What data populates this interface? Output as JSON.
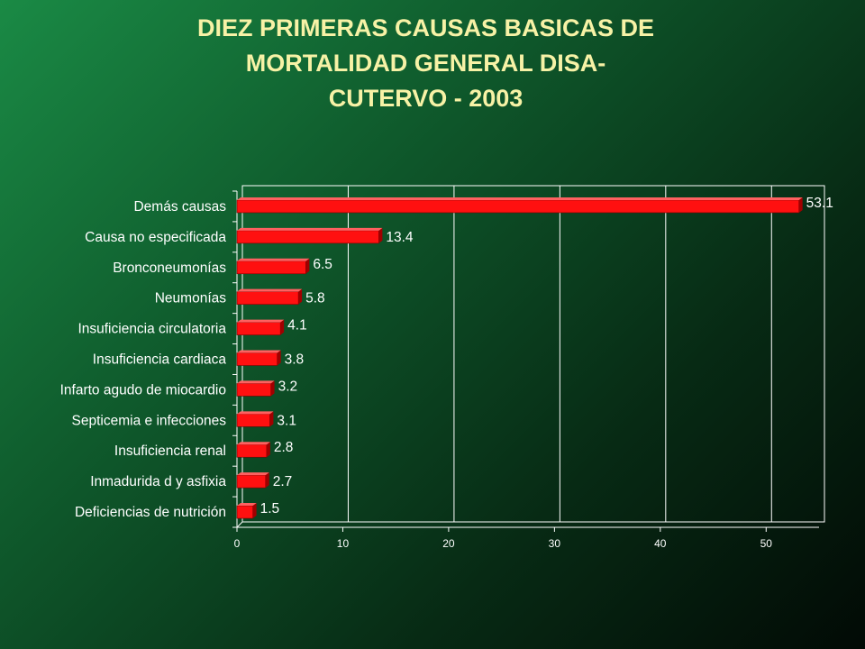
{
  "title": {
    "line1": "DIEZ PRIMERAS CAUSAS BASICAS DE",
    "line2": "MORTALIDAD GENERAL DISA-",
    "line3": "CUTERVO - 2003"
  },
  "colors": {
    "bar": "#ff1010",
    "bar_side": "#a00000",
    "title": "#f7f2a6",
    "text": "#ffffff",
    "grid": "#ffffff"
  },
  "chart_data": {
    "type": "bar",
    "orientation": "horizontal",
    "categories": [
      "Demás causas",
      "Causa no especificada",
      "Bronconeumonías",
      "Neumonías",
      "Insuficiencia circulatoria",
      "Insuficiencia cardiaca",
      "Infarto agudo de miocardio",
      "Septicemia e infecciones",
      "Insuficiencia renal",
      "Inmadurida d y asfixia",
      "Deficiencias de nutrición"
    ],
    "values": [
      53.1,
      13.4,
      6.5,
      5.8,
      4.1,
      3.8,
      3.2,
      3.1,
      2.8,
      2.7,
      1.5
    ],
    "value_labels": [
      "53.1",
      "13.4",
      "6.5",
      "5.8",
      "4.1",
      "3.8",
      "3.2",
      "3.1",
      "2.8",
      "2.7",
      "1.5"
    ],
    "xlim": [
      0,
      55
    ],
    "xticks": [
      0,
      10,
      20,
      30,
      40,
      50
    ],
    "xtick_labels": [
      "0",
      "10",
      "20",
      "30",
      "40",
      "50"
    ],
    "grid": true,
    "legend": false,
    "title": "DIEZ PRIMERAS CAUSAS BASICAS DE MORTALIDAD GENERAL DISA- CUTERVO - 2003"
  }
}
